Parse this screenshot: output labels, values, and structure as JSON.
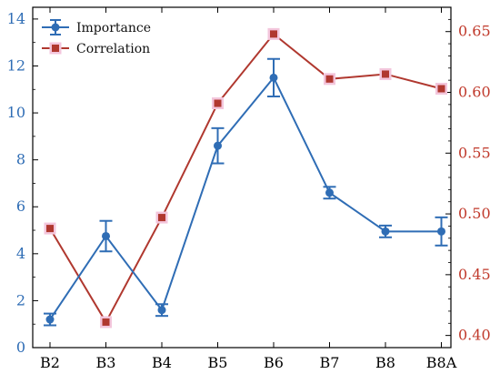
{
  "chart_data": {
    "type": "line",
    "title": "",
    "xlabel": "",
    "categories": [
      "B2",
      "B3",
      "B4",
      "B5",
      "B6",
      "B7",
      "B8",
      "B8A"
    ],
    "left_axis": {
      "ylabel": "",
      "ylim": [
        0,
        14.5
      ],
      "ticks": [
        0,
        2,
        4,
        6,
        8,
        10,
        12,
        14
      ],
      "color": "#2f6db5"
    },
    "right_axis": {
      "ylabel": "",
      "ylim": [
        0.39,
        0.67
      ],
      "ticks": [
        0.4,
        0.45,
        0.5,
        0.55,
        0.6,
        0.65
      ],
      "tick_labels": [
        "0.40",
        "0.45",
        "0.50",
        "0.55",
        "0.60",
        "0.65"
      ],
      "color": "#c0392b"
    },
    "series": [
      {
        "name": "Importance",
        "axis": "left",
        "color": "#2f6db5",
        "marker": "circle",
        "values": [
          1.2,
          4.75,
          1.6,
          8.6,
          11.5,
          6.6,
          4.95,
          4.95
        ],
        "error": [
          0.25,
          0.65,
          0.25,
          0.75,
          0.8,
          0.25,
          0.25,
          0.6
        ]
      },
      {
        "name": "Correlation",
        "axis": "right",
        "color": "#b0382f",
        "marker": "square",
        "values": [
          0.488,
          0.411,
          0.497,
          0.591,
          0.648,
          0.611,
          0.615,
          0.603
        ]
      }
    ],
    "legend": "top-left",
    "grid": false
  }
}
